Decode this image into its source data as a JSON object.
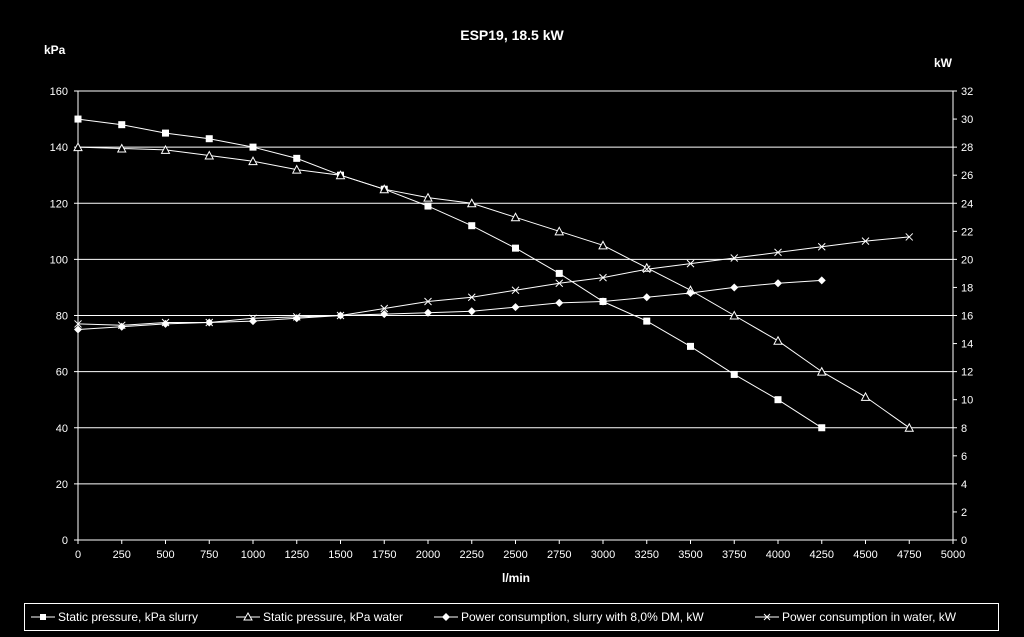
{
  "chart_data": {
    "type": "line",
    "title": "ESP19, 18.5 kW",
    "xlabel": "l/min",
    "ylabel_left": "kPa",
    "ylabel_right": "kW",
    "xlim": [
      0,
      5000
    ],
    "ylim_left": [
      0,
      160
    ],
    "ylim_right": [
      0,
      32
    ],
    "x_ticks": [
      0,
      250,
      500,
      750,
      1000,
      1250,
      1500,
      1750,
      2000,
      2250,
      2500,
      2750,
      3000,
      3250,
      3500,
      3750,
      4000,
      4250,
      4500,
      4750,
      5000
    ],
    "y_ticks_left": [
      0,
      20,
      40,
      60,
      80,
      100,
      120,
      140,
      160
    ],
    "y_ticks_right": [
      0,
      2,
      4,
      6,
      8,
      10,
      12,
      14,
      16,
      18,
      20,
      22,
      24,
      26,
      28,
      30,
      32
    ],
    "grid": "horizontal",
    "legend_position": "bottom",
    "series": [
      {
        "name": "Static pressure, kPa slurry",
        "axis": "left",
        "marker": "square",
        "x": [
          0,
          250,
          500,
          750,
          1000,
          1250,
          1500,
          1750,
          2000,
          2250,
          2500,
          2750,
          3000,
          3250,
          3500,
          3750,
          4000,
          4250
        ],
        "y": [
          150,
          148,
          145,
          143,
          140,
          136,
          130,
          125,
          119,
          112,
          104,
          95,
          85,
          78,
          69,
          59,
          50,
          40
        ]
      },
      {
        "name": "Static pressure, kPa water",
        "axis": "left",
        "marker": "triangle",
        "x": [
          0,
          250,
          500,
          750,
          1000,
          1250,
          1500,
          1750,
          2000,
          2250,
          2500,
          2750,
          3000,
          3250,
          3500,
          3750,
          4000,
          4250,
          4500,
          4750
        ],
        "y": [
          140,
          139.5,
          139,
          137,
          135,
          132,
          130,
          125,
          122,
          120,
          115,
          110,
          105,
          97,
          89,
          80,
          71,
          60,
          51,
          40
        ]
      },
      {
        "name": "Power consumption, slurry with 8,0% DM, kW",
        "axis": "right",
        "marker": "diamond",
        "x": [
          0,
          250,
          500,
          750,
          1000,
          1250,
          1500,
          1750,
          2000,
          2250,
          2500,
          2750,
          3000,
          3250,
          3500,
          3750,
          4000,
          4250
        ],
        "y": [
          15,
          15.2,
          15.4,
          15.5,
          15.6,
          15.8,
          16,
          16.1,
          16.2,
          16.3,
          16.6,
          16.9,
          17,
          17.3,
          17.6,
          18,
          18.3,
          18.5
        ]
      },
      {
        "name": "Power consumption in water, kW",
        "axis": "right",
        "marker": "x",
        "x": [
          0,
          250,
          500,
          750,
          1000,
          1250,
          1500,
          1750,
          2000,
          2250,
          2500,
          2750,
          3000,
          3250,
          3500,
          3750,
          4000,
          4250,
          4500,
          4750
        ],
        "y": [
          15.4,
          15.3,
          15.5,
          15.5,
          15.8,
          15.9,
          16,
          16.5,
          17,
          17.3,
          17.8,
          18.3,
          18.7,
          19.3,
          19.7,
          20.1,
          20.5,
          20.9,
          21.3,
          21.6
        ]
      }
    ]
  }
}
